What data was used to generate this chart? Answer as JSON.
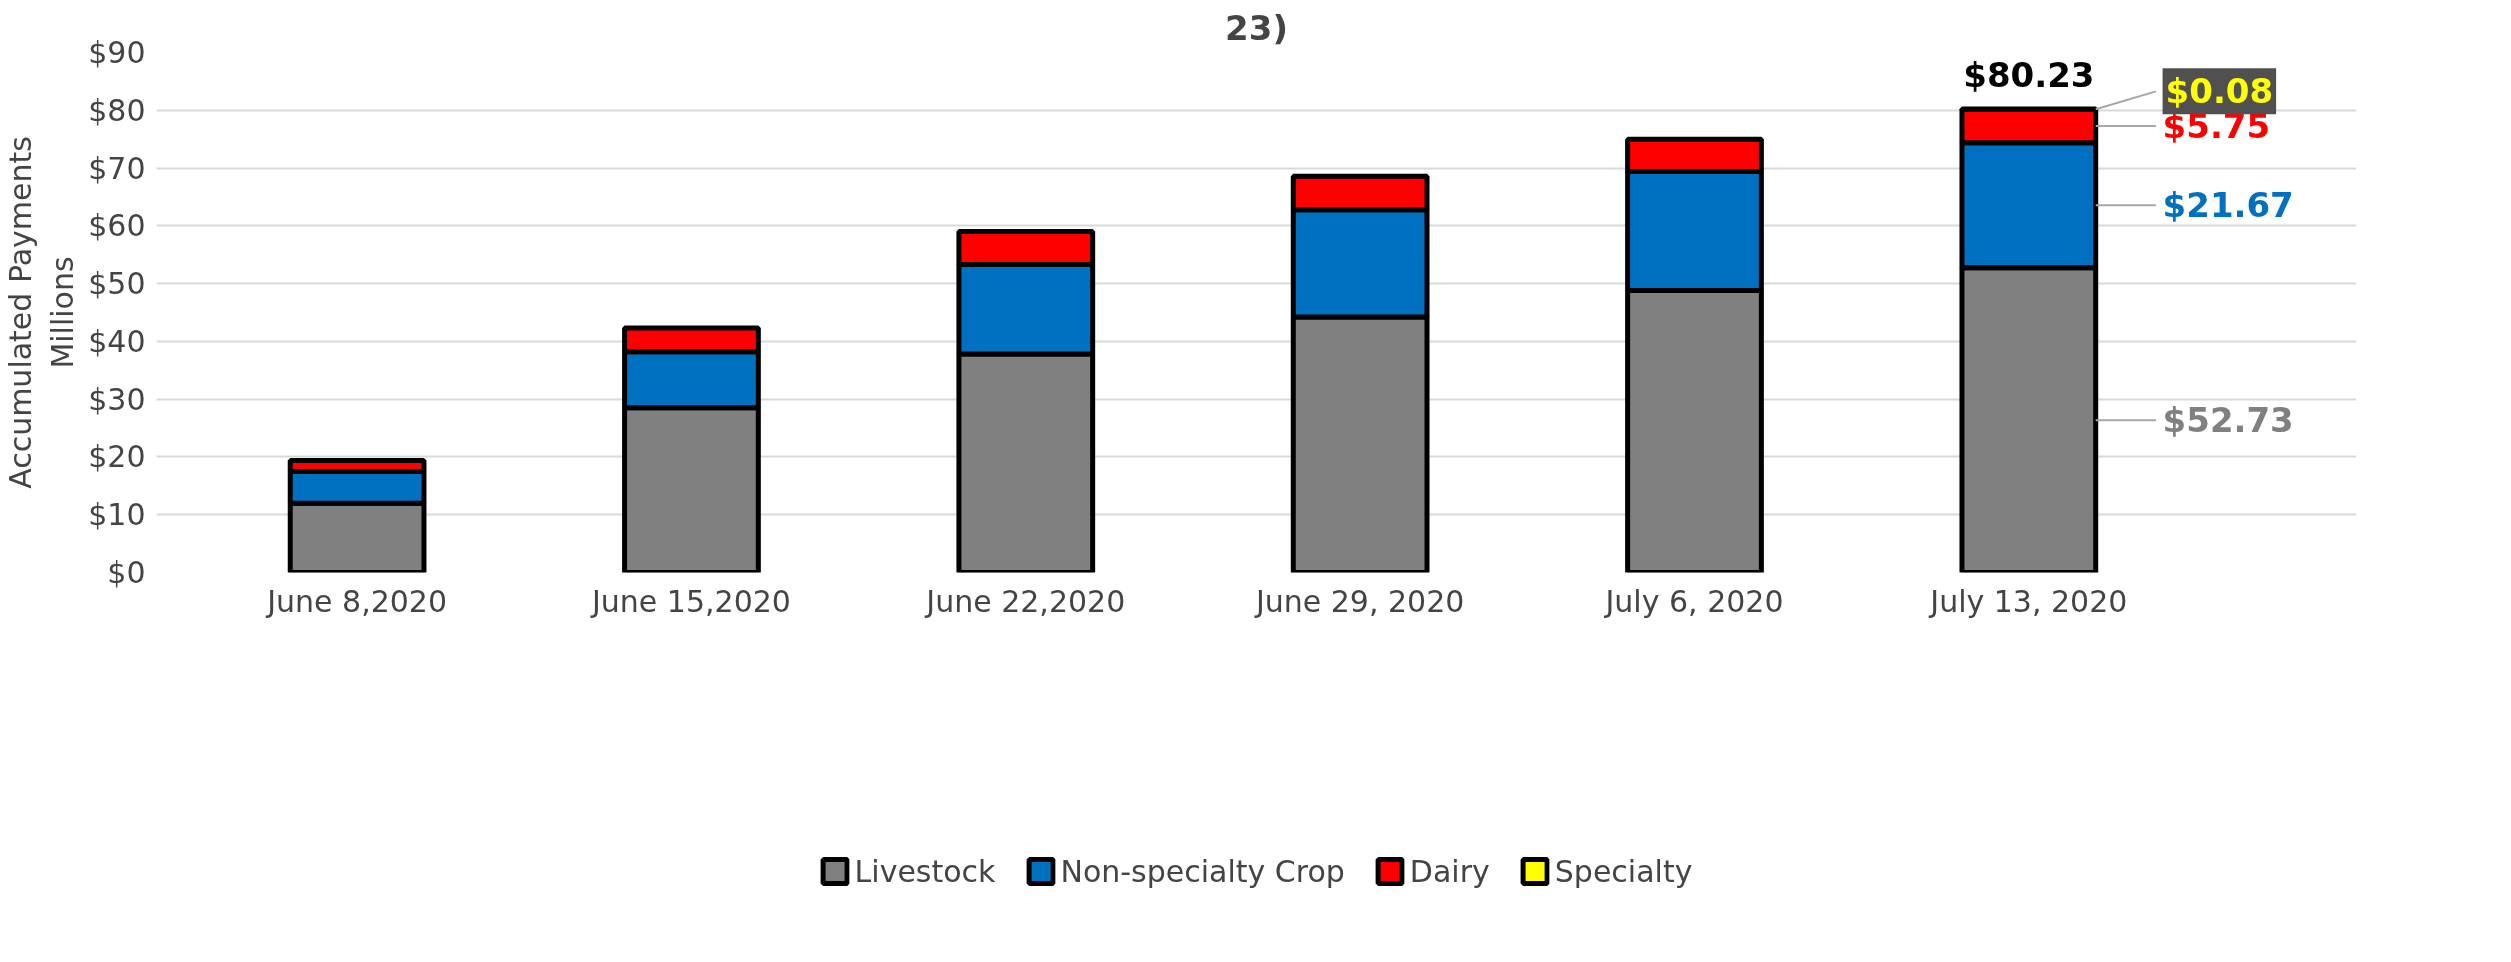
{
  "chart_data": {
    "type": "bar",
    "title": "23)",
    "ylabel": "Accumulated Payments\nMillions",
    "stacked": true,
    "categories": [
      "June 8,2020",
      "June 15,2020",
      "June 22,2020",
      "June 29, 2020",
      "July 6, 2020",
      "July 13, 2020"
    ],
    "series": [
      {
        "name": "Livestock",
        "color": "#808080",
        "values": [
          12.0,
          28.5,
          37.8,
          44.2,
          48.8,
          52.73
        ],
        "value_labels": [
          null,
          null,
          null,
          null,
          null,
          "$52.73"
        ]
      },
      {
        "name": "Non-specialty Crop",
        "color": "#0070c0",
        "values": [
          5.5,
          9.7,
          15.5,
          18.6,
          20.6,
          21.67
        ],
        "value_labels": [
          null,
          null,
          null,
          null,
          null,
          "$21.67"
        ]
      },
      {
        "name": "Dairy",
        "color": "#ff0000",
        "values": [
          1.9,
          4.1,
          5.7,
          5.8,
          5.6,
          5.75
        ],
        "value_labels": [
          null,
          null,
          null,
          null,
          null,
          "$5.75"
        ]
      },
      {
        "name": "Specialty",
        "color": "#ffff00",
        "values": [
          null,
          null,
          null,
          null,
          null,
          0.08
        ],
        "value_labels": [
          null,
          null,
          null,
          null,
          null,
          "$0.08"
        ]
      }
    ],
    "totals": [
      null,
      null,
      null,
      null,
      null,
      "$80.23"
    ],
    "ylim": [
      0,
      90
    ],
    "yticks": [
      {
        "value": 0,
        "label": "$0"
      },
      {
        "value": 10,
        "label": "$10"
      },
      {
        "value": 20,
        "label": "$20"
      },
      {
        "value": 30,
        "label": "$30"
      },
      {
        "value": 40,
        "label": "$40"
      },
      {
        "value": 50,
        "label": "$50"
      },
      {
        "value": 60,
        "label": "$60"
      },
      {
        "value": 70,
        "label": "$70"
      },
      {
        "value": 80,
        "label": "$80"
      },
      {
        "value": 90,
        "label": "$90"
      }
    ],
    "grid": "y",
    "legend": "bottom"
  }
}
